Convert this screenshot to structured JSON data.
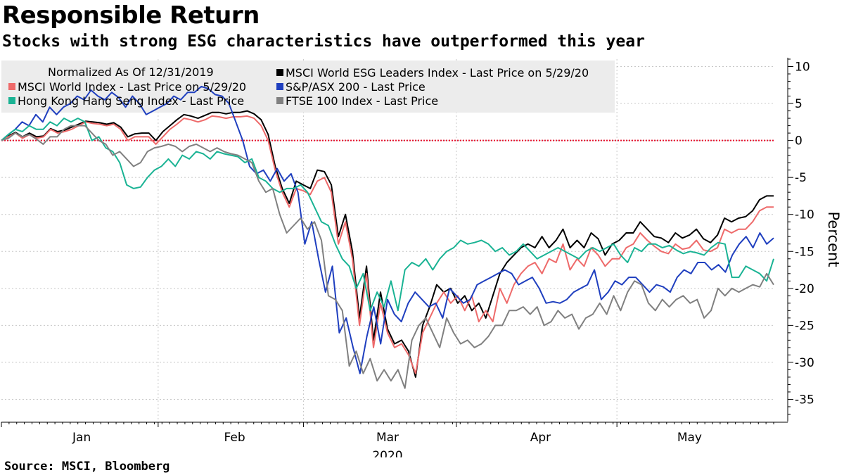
{
  "title": "Responsible Return",
  "subtitle": "Stocks with strong ESG characteristics have outperformed this year",
  "source": "Source: MSCI, Bloomberg",
  "chart_data": {
    "type": "line",
    "ylabel": "Percent",
    "ylim": [
      -38,
      11
    ],
    "yticks": [
      10,
      5,
      0,
      -5,
      -10,
      -15,
      -20,
      -25,
      -30,
      -35
    ],
    "ytick_labels": [
      "10",
      "5",
      "0",
      "-5",
      "-10",
      "-15",
      "-20",
      "-25",
      "-30",
      "-35"
    ],
    "x_start": "2019-12-31",
    "x_end": "2020-05-29",
    "xlim": [
      0,
      101
    ],
    "x_month_labels": [
      {
        "label": "Jan",
        "center": 10.5
      },
      {
        "label": "Feb",
        "center": 30.5
      },
      {
        "label": "Mar",
        "center": 50.5
      },
      {
        "label": "Apr",
        "center": 70.5
      },
      {
        "label": "May",
        "center": 90
      }
    ],
    "x_month_boundaries": [
      20.5,
      39.5,
      59.5,
      80.5
    ],
    "x_year_label": "2020",
    "reference_line": 0,
    "legend_header": "Normalized As Of 12/31/2019",
    "series": [
      {
        "name": "MSCI World Index - Last Price on 5/29/20",
        "color": "#ee6a6a",
        "values": [
          0,
          0.5,
          1,
          0.3,
          0.8,
          0.3,
          0.5,
          1.5,
          1,
          1.2,
          1.5,
          2,
          2.5,
          2.3,
          2.2,
          2,
          2.2,
          1.5,
          0,
          0.5,
          0.5,
          0.5,
          -0.5,
          0.5,
          1.5,
          2.2,
          3,
          2.8,
          2.5,
          2.8,
          3.3,
          3.2,
          3,
          3.2,
          3.2,
          3.3,
          3,
          2,
          0,
          -4,
          -7,
          -9,
          -6.5,
          -6.8,
          -7.3,
          -5.5,
          -5,
          -7,
          -14,
          -11,
          -16,
          -25,
          -18,
          -28,
          -22,
          -26,
          -28,
          -27.5,
          -29,
          -31.5,
          -26,
          -24,
          -22,
          -20.5,
          -22,
          -21,
          -23,
          -21,
          -24.5,
          -23,
          -24.5,
          -20,
          -22,
          -19.5,
          -18,
          -17,
          -16.5,
          -18,
          -16,
          -16.5,
          -14,
          -17.5,
          -16,
          -17,
          -14.5,
          -15.5,
          -17,
          -16,
          -16,
          -14.5,
          -14,
          -12.5,
          -13.5,
          -14.3,
          -15,
          -15.3,
          -14,
          -14.7,
          -14.5,
          -13.5,
          -14.8,
          -15,
          -14.5,
          -12,
          -12.5,
          -12,
          -12,
          -11,
          -9.5,
          -9,
          -9
        ],
        "x_mode": "stretch"
      }
    ]
  }
}
